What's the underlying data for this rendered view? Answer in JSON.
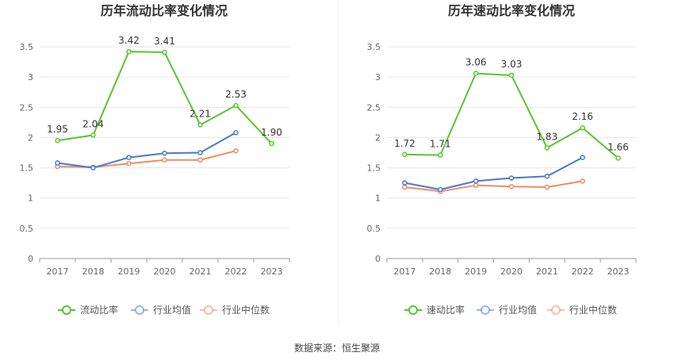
{
  "source_text": "数据来源：恒生聚源",
  "colors": {
    "series1": "#5ac430",
    "series2": "#4878d0",
    "series3": "#ee8c64",
    "grid": "#e6e6e6",
    "axis": "#999999"
  },
  "chart_data": [
    {
      "type": "line",
      "title": "历年流动比率变化情况",
      "categories": [
        "2017",
        "2018",
        "2019",
        "2020",
        "2021",
        "2022",
        "2023"
      ],
      "ylim": [
        0,
        3.5
      ],
      "yticks": [
        "0",
        "0.5",
        "1",
        "1.5",
        "2",
        "2.5",
        "3",
        "3.5"
      ],
      "grid": true,
      "legend_position": "bottom",
      "series": [
        {
          "name": "流动比率",
          "values": [
            1.95,
            2.04,
            3.42,
            3.41,
            2.21,
            2.53,
            1.9
          ],
          "labels": [
            "1.95",
            "2.04",
            "3.42",
            "3.41",
            "2.21",
            "2.53",
            "1.90"
          ]
        },
        {
          "name": "行业均值",
          "values": [
            1.58,
            1.5,
            1.67,
            1.74,
            1.75,
            2.08,
            null
          ]
        },
        {
          "name": "行业中位数",
          "values": [
            1.52,
            1.51,
            1.57,
            1.63,
            1.63,
            1.78,
            null
          ]
        }
      ]
    },
    {
      "type": "line",
      "title": "历年速动比率变化情况",
      "categories": [
        "2017",
        "2018",
        "2019",
        "2020",
        "2021",
        "2022",
        "2023"
      ],
      "ylim": [
        0,
        3.5
      ],
      "yticks": [
        "0",
        "0.5",
        "1",
        "1.5",
        "2",
        "2.5",
        "3",
        "3.5"
      ],
      "grid": true,
      "legend_position": "bottom",
      "series": [
        {
          "name": "速动比率",
          "values": [
            1.72,
            1.71,
            3.06,
            3.03,
            1.83,
            2.16,
            1.66
          ],
          "labels": [
            "1.72",
            "1.71",
            "3.06",
            "3.03",
            "1.83",
            "2.16",
            "1.66"
          ]
        },
        {
          "name": "行业均值",
          "values": [
            1.25,
            1.14,
            1.28,
            1.33,
            1.36,
            1.67,
            null
          ]
        },
        {
          "name": "行业中位数",
          "values": [
            1.18,
            1.11,
            1.21,
            1.19,
            1.18,
            1.28,
            null
          ]
        }
      ]
    }
  ]
}
